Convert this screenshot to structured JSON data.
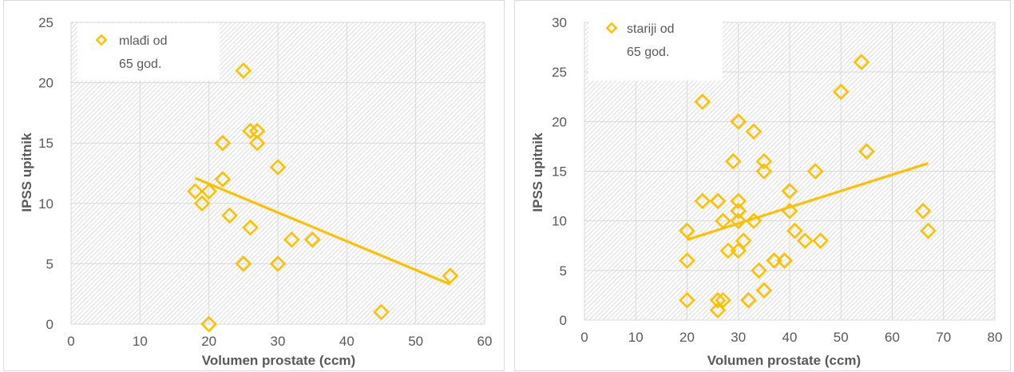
{
  "chart_data": [
    {
      "type": "scatter",
      "xlabel": "Volumen prostate (ccm)",
      "ylabel": "IPSS upitnik",
      "xlim": [
        0,
        60
      ],
      "ylim": [
        0,
        25
      ],
      "xticks": [
        0,
        10,
        20,
        30,
        40,
        50,
        60
      ],
      "yticks": [
        0,
        5,
        10,
        15,
        20,
        25
      ],
      "grid": true,
      "legend_position": "top-left",
      "series": [
        {
          "name": "mlađi od 65 god.",
          "marker": "diamond-open",
          "color": "#FFC000",
          "points": [
            [
              18,
              11
            ],
            [
              19,
              10
            ],
            [
              20,
              11
            ],
            [
              20,
              0
            ],
            [
              22,
              15
            ],
            [
              22,
              12
            ],
            [
              23,
              9
            ],
            [
              25,
              21
            ],
            [
              25,
              5
            ],
            [
              26,
              16
            ],
            [
              26,
              8
            ],
            [
              27,
              16
            ],
            [
              27,
              15
            ],
            [
              30,
              13
            ],
            [
              30,
              5
            ],
            [
              32,
              7
            ],
            [
              35,
              7
            ],
            [
              45,
              1
            ],
            [
              55,
              4
            ]
          ]
        }
      ],
      "trendline": {
        "type": "linear",
        "color": "#FFC000",
        "x_range": [
          18,
          55
        ],
        "y_start": 12.1,
        "y_end": 3.3
      }
    },
    {
      "type": "scatter",
      "xlabel": "Volumen prostate (ccm)",
      "ylabel": "IPSS upitnik",
      "xlim": [
        0,
        80
      ],
      "ylim": [
        0,
        30
      ],
      "xticks": [
        0,
        10,
        20,
        30,
        40,
        50,
        60,
        70,
        80
      ],
      "yticks": [
        0,
        5,
        10,
        15,
        20,
        25,
        30
      ],
      "grid": true,
      "legend_position": "top-left",
      "series": [
        {
          "name": "stariji od 65 god.",
          "marker": "diamond-open",
          "color": "#FFC000",
          "points": [
            [
              20,
              9
            ],
            [
              20,
              6
            ],
            [
              20,
              2
            ],
            [
              23,
              22
            ],
            [
              23,
              12
            ],
            [
              26,
              12
            ],
            [
              26,
              2
            ],
            [
              26,
              1
            ],
            [
              27,
              10
            ],
            [
              27,
              2
            ],
            [
              28,
              7
            ],
            [
              29,
              16
            ],
            [
              30,
              20
            ],
            [
              30,
              12
            ],
            [
              30,
              11
            ],
            [
              30,
              10
            ],
            [
              30,
              7
            ],
            [
              31,
              8
            ],
            [
              32,
              2
            ],
            [
              33,
              19
            ],
            [
              33,
              10
            ],
            [
              34,
              5
            ],
            [
              35,
              16
            ],
            [
              35,
              15
            ],
            [
              35,
              3
            ],
            [
              37,
              6
            ],
            [
              39,
              6
            ],
            [
              40,
              13
            ],
            [
              40,
              11
            ],
            [
              41,
              9
            ],
            [
              43,
              8
            ],
            [
              45,
              15
            ],
            [
              46,
              8
            ],
            [
              50,
              23
            ],
            [
              54,
              26
            ],
            [
              55,
              17
            ],
            [
              66,
              11
            ],
            [
              67,
              9
            ]
          ]
        }
      ],
      "trendline": {
        "type": "linear",
        "color": "#FFC000",
        "x_range": [
          20,
          67
        ],
        "y_start": 8.1,
        "y_end": 15.8
      }
    }
  ],
  "legends": [
    {
      "line1": "mlađi od",
      "line2": "65 god."
    },
    {
      "line1": "stariji od",
      "line2": "65 god."
    }
  ]
}
